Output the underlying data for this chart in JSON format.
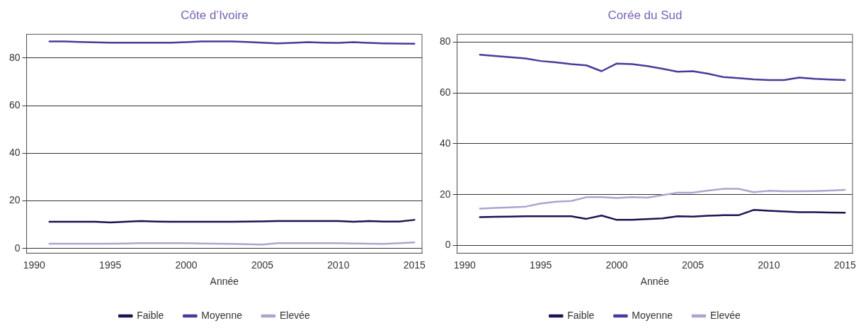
{
  "chart_data": [
    {
      "type": "line",
      "title": "Côte d’Ivoire",
      "xlabel": "Année",
      "x": [
        1991,
        1992,
        1993,
        1994,
        1995,
        1996,
        1997,
        1998,
        1999,
        2000,
        2001,
        2002,
        2003,
        2004,
        2005,
        2006,
        2007,
        2008,
        2009,
        2010,
        2011,
        2012,
        2013,
        2014,
        2015
      ],
      "series": [
        {
          "name": "Faible",
          "color": "#1c1452",
          "values": [
            11.2,
            11.2,
            11.2,
            11.2,
            10.9,
            11.2,
            11.5,
            11.3,
            11.2,
            11.2,
            11.2,
            11.2,
            11.2,
            11.3,
            11.4,
            11.5,
            11.5,
            11.5,
            11.5,
            11.5,
            11.2,
            11.5,
            11.3,
            11.3,
            12
          ]
        },
        {
          "name": "Moyenne",
          "color": "#4b3a9a",
          "values": [
            87,
            87,
            86.8,
            86.6,
            86.5,
            86.5,
            86.5,
            86.5,
            86.5,
            86.7,
            87,
            87,
            87,
            86.8,
            86.5,
            86.2,
            86.4,
            86.7,
            86.5,
            86.4,
            86.7,
            86.4,
            86.2,
            86.1,
            86
          ]
        },
        {
          "name": "Elevée",
          "color": "#ada4d0",
          "values": [
            2,
            2,
            2,
            2,
            2,
            2.1,
            2.2,
            2.2,
            2.2,
            2.2,
            2.1,
            2,
            1.9,
            1.8,
            1.6,
            2.2,
            2.2,
            2.2,
            2.2,
            2.2,
            2.1,
            2,
            1.9,
            2.2,
            2.5
          ]
        }
      ],
      "xlim": [
        1989.5,
        2015.5
      ],
      "ylim": [
        -2,
        90
      ],
      "xticks": [
        1990,
        1995,
        2000,
        2005,
        2010,
        2015
      ],
      "yticks": [
        0,
        20,
        40,
        60,
        80
      ],
      "grid": "y",
      "legend": "bottom",
      "marker": "none",
      "line_style": "solid"
    },
    {
      "type": "line",
      "title": "Corée du Sud",
      "xlabel": "Année",
      "x": [
        1991,
        1992,
        1993,
        1994,
        1995,
        1996,
        1997,
        1998,
        1999,
        2000,
        2001,
        2002,
        2003,
        2004,
        2005,
        2006,
        2007,
        2008,
        2009,
        2010,
        2011,
        2012,
        2013,
        2014,
        2015
      ],
      "series": [
        {
          "name": "Faible",
          "color": "#1c1452",
          "values": [
            11.2,
            11.3,
            11.4,
            11.5,
            11.5,
            11.5,
            11.5,
            10.5,
            11.8,
            10.1,
            10.1,
            10.4,
            10.7,
            11.5,
            11.4,
            11.7,
            11.9,
            11.9,
            14,
            13.7,
            13.4,
            13.1,
            13.1,
            13,
            12.9
          ]
        },
        {
          "name": "Moyenne",
          "color": "#4b3a9a",
          "values": [
            75,
            74.5,
            74,
            73.5,
            72.5,
            72,
            71.3,
            70.8,
            68.5,
            71.5,
            71.3,
            70.5,
            69.5,
            68.3,
            68.5,
            67.5,
            66.2,
            65.8,
            65.3,
            65,
            65,
            66,
            65.5,
            65.2,
            65
          ]
        },
        {
          "name": "Elevée",
          "color": "#ada4d0",
          "values": [
            14.5,
            14.8,
            15,
            15.3,
            16.5,
            17.2,
            17.5,
            19,
            19,
            18.7,
            19,
            18.8,
            19.8,
            20.8,
            20.8,
            21.6,
            22.3,
            22.3,
            21,
            21.5,
            21.3,
            21.3,
            21.4,
            21.6,
            21.9
          ]
        }
      ],
      "xlim": [
        1989.5,
        2015.5
      ],
      "ylim": [
        -3,
        83
      ],
      "xticks": [
        1990,
        1995,
        2000,
        2005,
        2010,
        2015
      ],
      "yticks": [
        0,
        20,
        40,
        60,
        80
      ],
      "grid": "y",
      "legend": "bottom",
      "marker": "none",
      "line_style": "solid"
    }
  ]
}
